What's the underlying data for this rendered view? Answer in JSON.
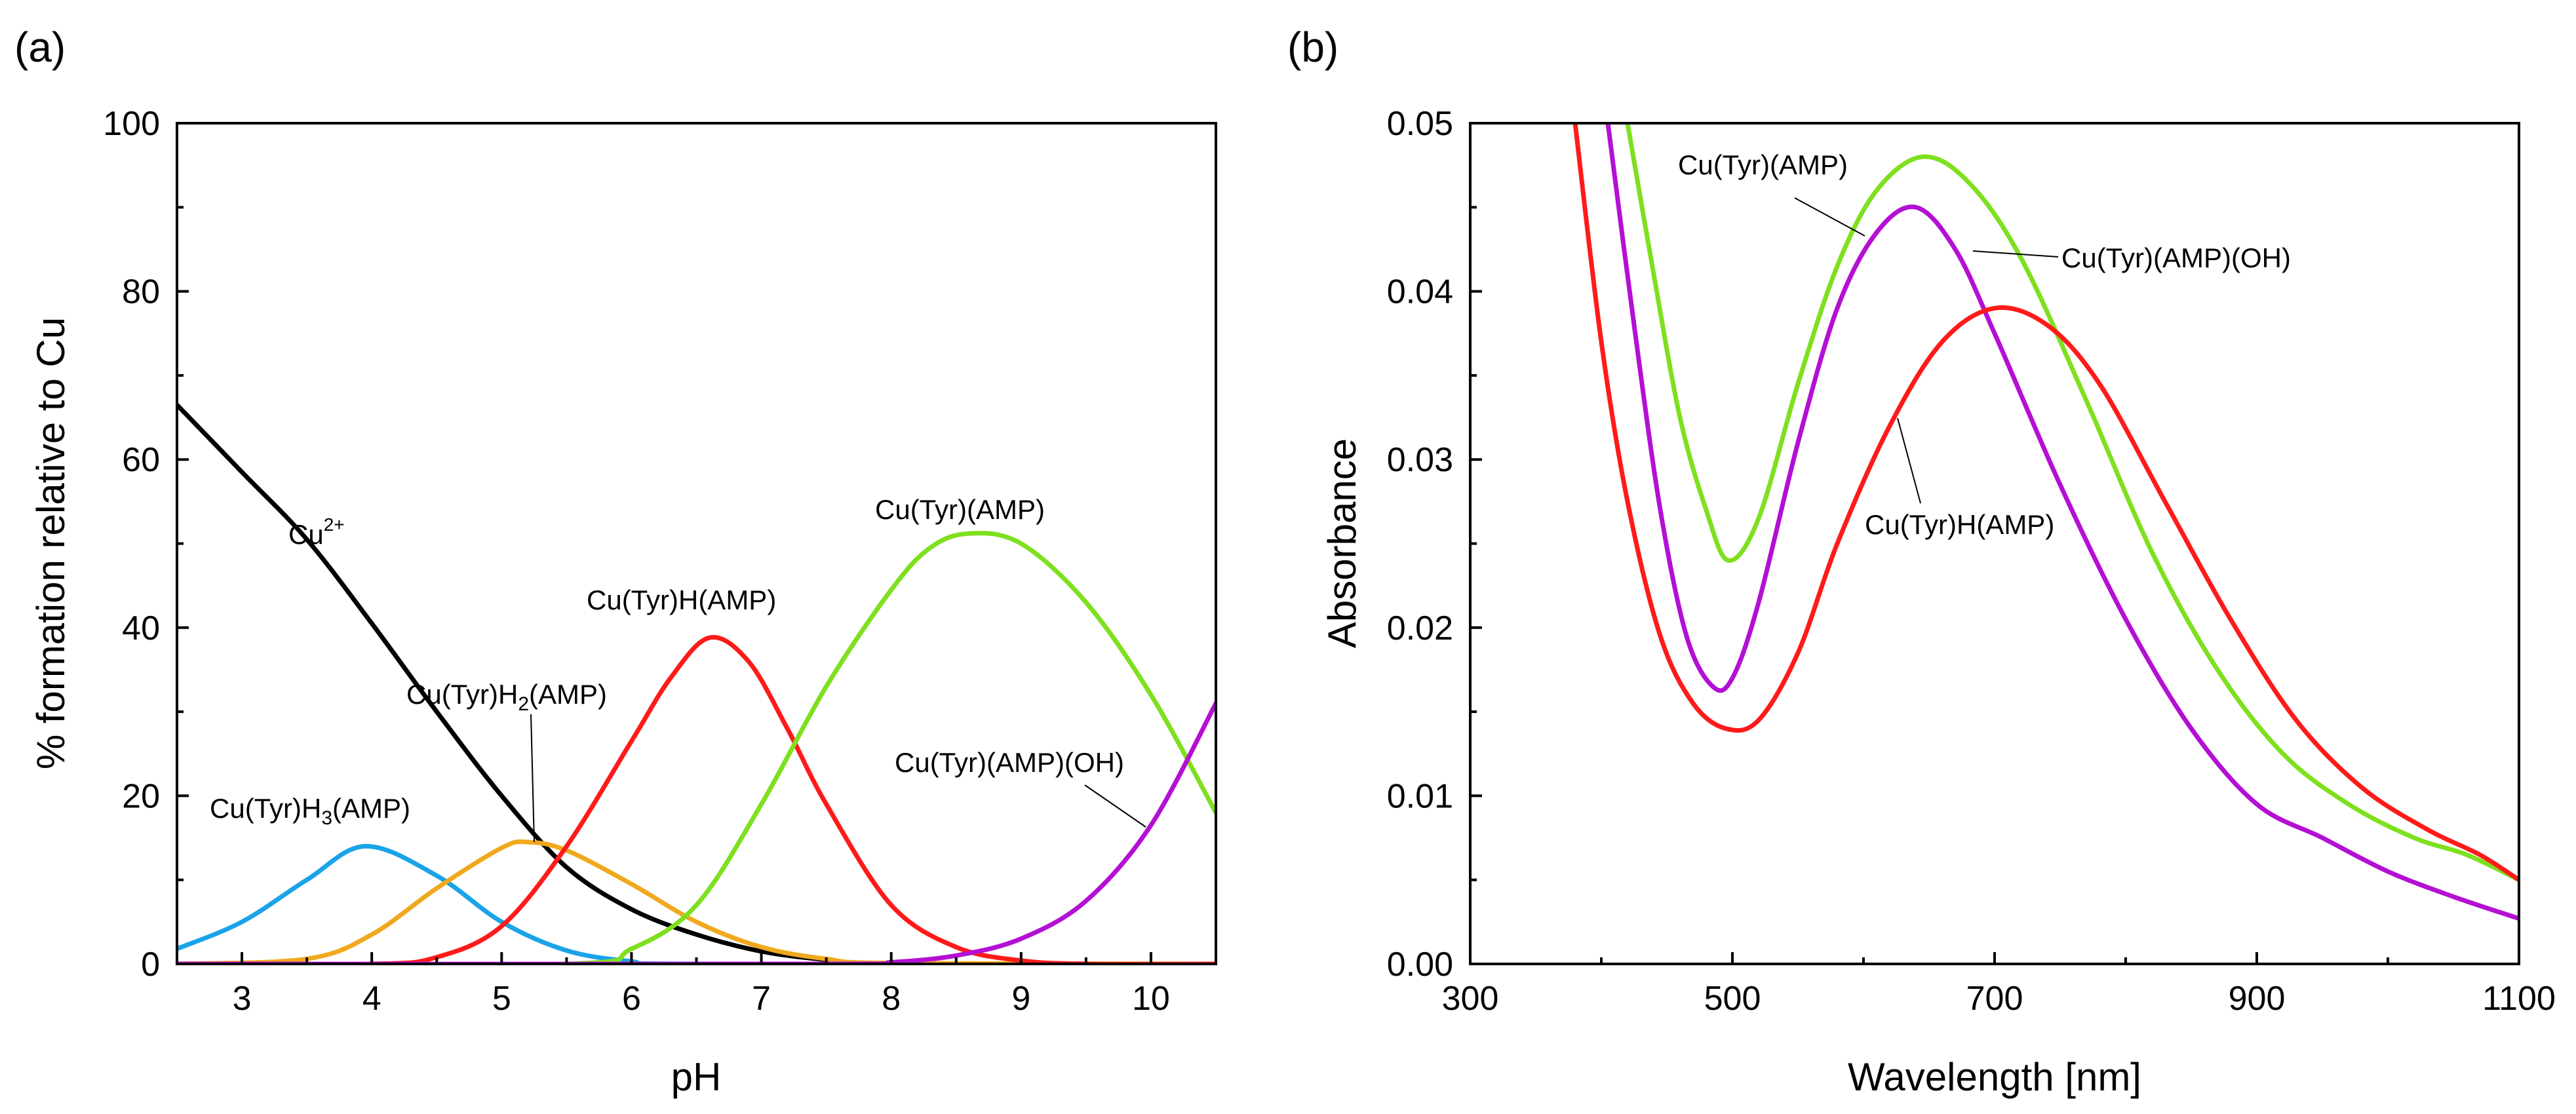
{
  "chart_data": [
    {
      "type": "line",
      "panel_label": "(a)",
      "xlabel": "pH",
      "ylabel": "% formation relative to Cu",
      "xlim": [
        2.5,
        10.5
      ],
      "ylim": [
        0,
        100
      ],
      "x_ticks": [
        3,
        4,
        5,
        6,
        7,
        8,
        9,
        10
      ],
      "y_ticks": [
        0,
        20,
        40,
        60,
        80,
        100
      ],
      "grid": false,
      "legend": "none",
      "series": [
        {
          "name": "Cu2+",
          "color": "#000000",
          "points": [
            [
              2.5,
              66.5
            ],
            [
              3.0,
              58.5
            ],
            [
              3.5,
              50.5
            ],
            [
              4.0,
              40.5
            ],
            [
              4.5,
              30.0
            ],
            [
              5.0,
              20.0
            ],
            [
              5.5,
              11.5
            ],
            [
              6.0,
              6.5
            ],
            [
              6.5,
              3.5
            ],
            [
              7.0,
              1.5
            ],
            [
              7.5,
              0.5
            ],
            [
              8.0,
              0.0
            ],
            [
              10.5,
              0.0
            ]
          ]
        },
        {
          "name": "Cu(Tyr)H3(AMP)",
          "color": "#1aa3e8",
          "points": [
            [
              2.5,
              1.8
            ],
            [
              3.0,
              5.0
            ],
            [
              3.5,
              10.0
            ],
            [
              3.95,
              14.0
            ],
            [
              4.5,
              10.5
            ],
            [
              5.0,
              5.0
            ],
            [
              5.5,
              1.6
            ],
            [
              6.0,
              0.3
            ],
            [
              6.5,
              0.0
            ],
            [
              10.5,
              0.0
            ]
          ]
        },
        {
          "name": "Cu(Tyr)H2(AMP)",
          "color": "#f0a91e",
          "points": [
            [
              2.5,
              0.0
            ],
            [
              3.5,
              0.6
            ],
            [
              4.0,
              3.5
            ],
            [
              4.5,
              9.0
            ],
            [
              5.0,
              13.8
            ],
            [
              5.2,
              14.5
            ],
            [
              5.5,
              13.5
            ],
            [
              6.0,
              9.5
            ],
            [
              6.5,
              5.0
            ],
            [
              7.0,
              2.0
            ],
            [
              7.5,
              0.6
            ],
            [
              8.0,
              0.1
            ],
            [
              10.5,
              0.0
            ]
          ]
        },
        {
          "name": "Cu(Tyr)H(AMP)",
          "color": "#ff1a1a",
          "points": [
            [
              2.5,
              0.0
            ],
            [
              4.0,
              0.0
            ],
            [
              4.5,
              0.8
            ],
            [
              5.0,
              4.5
            ],
            [
              5.5,
              14.0
            ],
            [
              6.0,
              26.5
            ],
            [
              6.3,
              34.0
            ],
            [
              6.6,
              38.8
            ],
            [
              6.9,
              36.0
            ],
            [
              7.2,
              28.0
            ],
            [
              7.5,
              19.0
            ],
            [
              8.0,
              7.0
            ],
            [
              8.5,
              2.0
            ],
            [
              9.0,
              0.4
            ],
            [
              9.5,
              0.0
            ],
            [
              10.5,
              0.0
            ]
          ]
        },
        {
          "name": "Cu(Tyr)(AMP)",
          "color": "#7ee01e",
          "points": [
            [
              2.5,
              0.0
            ],
            [
              5.5,
              0.0
            ],
            [
              6.0,
              1.8
            ],
            [
              6.5,
              7.0
            ],
            [
              7.0,
              19.0
            ],
            [
              7.5,
              33.0
            ],
            [
              8.0,
              44.5
            ],
            [
              8.3,
              49.5
            ],
            [
              8.6,
              51.2
            ],
            [
              9.0,
              50.0
            ],
            [
              9.5,
              43.0
            ],
            [
              10.0,
              32.0
            ],
            [
              10.5,
              18.0
            ]
          ]
        },
        {
          "name": "Cu(Tyr)(AMP)(OH)",
          "color": "#b40fd4",
          "points": [
            [
              2.5,
              0.0
            ],
            [
              7.5,
              0.0
            ],
            [
              8.0,
              0.2
            ],
            [
              8.5,
              1.0
            ],
            [
              9.0,
              3.0
            ],
            [
              9.5,
              7.5
            ],
            [
              10.0,
              16.5
            ],
            [
              10.5,
              31.0
            ]
          ]
        }
      ],
      "annotations": [
        {
          "text": "Cu",
          "sup": "2+",
          "x": 3.9,
          "y": 51
        },
        {
          "text": "Cu(Tyr)H3(AMP)",
          "x": 3.65,
          "y": 18
        },
        {
          "text": "Cu(Tyr)H2(AMP)",
          "x": 5.35,
          "y": 32
        },
        {
          "text": "Cu(Tyr)H(AMP)",
          "x": 6.3,
          "y": 43
        },
        {
          "text": "Cu(Tyr)(AMP)",
          "x": 8.65,
          "y": 54
        },
        {
          "text": "Cu(Tyr)(AMP)(OH)",
          "x": 9.05,
          "y": 23
        }
      ]
    },
    {
      "type": "line",
      "panel_label": "(b)",
      "xlabel": "Wavelength [nm]",
      "ylabel": "Absorbance",
      "xlim": [
        300,
        1100
      ],
      "ylim": [
        0.0,
        0.05
      ],
      "x_ticks": [
        300,
        500,
        700,
        900,
        1100
      ],
      "y_ticks": [
        0.0,
        0.01,
        0.02,
        0.03,
        0.04,
        0.05
      ],
      "y_tick_labels": [
        "0.00",
        "0.01",
        "0.02",
        "0.03",
        "0.04",
        "0.05"
      ],
      "grid": false,
      "legend": "none",
      "series": [
        {
          "name": "Cu(Tyr)(AMP)",
          "color": "#7ee01e",
          "points": [
            [
              420,
              0.05
            ],
            [
              440,
              0.041
            ],
            [
              460,
              0.0325
            ],
            [
              480,
              0.027
            ],
            [
              497,
              0.024
            ],
            [
              520,
              0.0265
            ],
            [
              550,
              0.0345
            ],
            [
              580,
              0.0415
            ],
            [
              610,
              0.046
            ],
            [
              645,
              0.048
            ],
            [
              680,
              0.0465
            ],
            [
              720,
              0.042
            ],
            [
              770,
              0.0335
            ],
            [
              820,
              0.0245
            ],
            [
              870,
              0.0175
            ],
            [
              920,
              0.0125
            ],
            [
              970,
              0.0095
            ],
            [
              1020,
              0.0075
            ],
            [
              1060,
              0.0065
            ],
            [
              1100,
              0.005
            ]
          ]
        },
        {
          "name": "Cu(Tyr)(AMP)(OH)",
          "color": "#b40fd4",
          "points": [
            [
              405,
              0.05
            ],
            [
              425,
              0.038
            ],
            [
              445,
              0.027
            ],
            [
              465,
              0.0195
            ],
            [
              485,
              0.0165
            ],
            [
              500,
              0.017
            ],
            [
              520,
              0.0215
            ],
            [
              550,
              0.031
            ],
            [
              580,
              0.039
            ],
            [
              610,
              0.0435
            ],
            [
              640,
              0.045
            ],
            [
              670,
              0.0425
            ],
            [
              700,
              0.0375
            ],
            [
              750,
              0.0285
            ],
            [
              800,
              0.0205
            ],
            [
              850,
              0.014
            ],
            [
              900,
              0.0095
            ],
            [
              950,
              0.0075
            ],
            [
              1000,
              0.0055
            ],
            [
              1050,
              0.004
            ],
            [
              1100,
              0.0027
            ]
          ]
        },
        {
          "name": "Cu(Tyr)H(AMP)",
          "color": "#ff1a1a",
          "points": [
            [
              380,
              0.05
            ],
            [
              400,
              0.037
            ],
            [
              420,
              0.0275
            ],
            [
              445,
              0.0195
            ],
            [
              470,
              0.0155
            ],
            [
              495,
              0.014
            ],
            [
              520,
              0.0145
            ],
            [
              550,
              0.0185
            ],
            [
              580,
              0.025
            ],
            [
              620,
              0.032
            ],
            [
              660,
              0.037
            ],
            [
              700,
              0.039
            ],
            [
              740,
              0.038
            ],
            [
              780,
              0.0345
            ],
            [
              830,
              0.0275
            ],
            [
              880,
              0.0205
            ],
            [
              930,
              0.0145
            ],
            [
              980,
              0.0105
            ],
            [
              1030,
              0.008
            ],
            [
              1070,
              0.0065
            ],
            [
              1100,
              0.005
            ]
          ]
        }
      ],
      "annotations": [
        {
          "text": "Cu(Tyr)(AMP)",
          "x": 490,
          "y": 0.0466
        },
        {
          "text": "Cu(Tyr)(AMP)(OH)",
          "x": 835,
          "y": 0.0415
        },
        {
          "text": "Cu(Tyr)H(AMP)",
          "x": 835,
          "y": 0.0257
        }
      ]
    }
  ]
}
